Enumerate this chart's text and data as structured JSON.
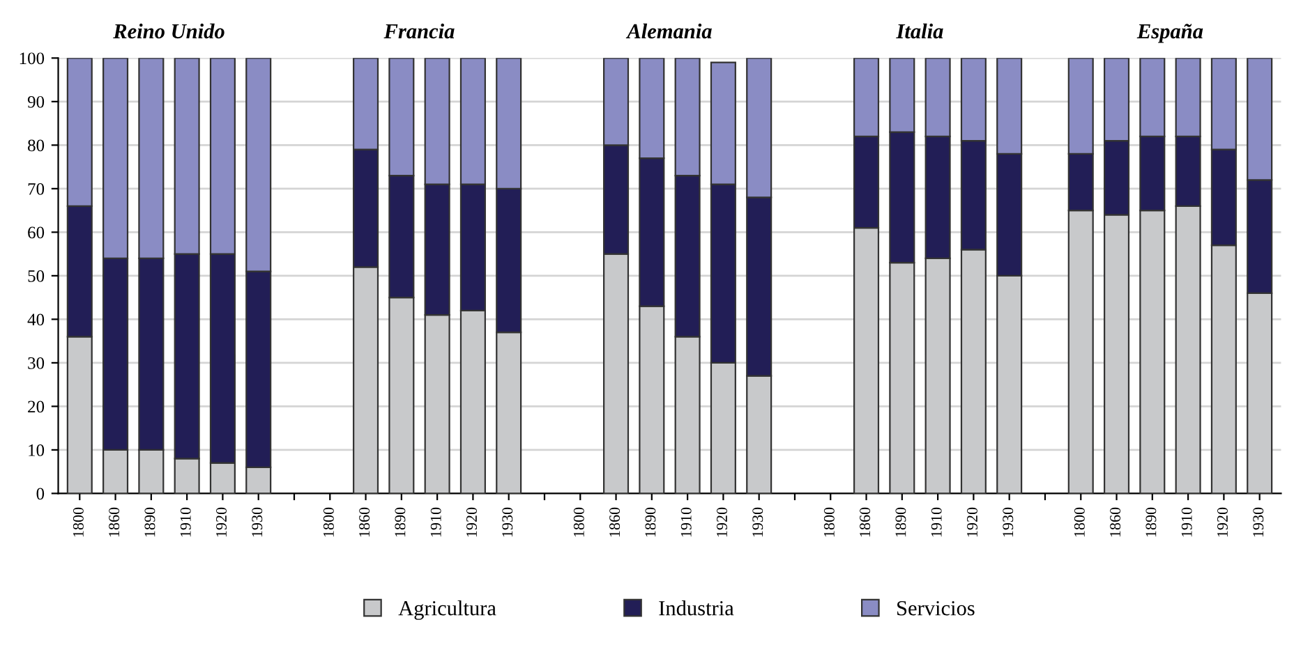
{
  "chart_data": {
    "type": "bar",
    "stacked": true,
    "categories": [
      "1800",
      "1860",
      "1890",
      "1910",
      "1920",
      "1930",
      null,
      "1800",
      "1860",
      "1890",
      "1910",
      "1920",
      "1930",
      null,
      "1800",
      "1860",
      "1890",
      "1910",
      "1920",
      "1930",
      null,
      "1800",
      "1860",
      "1890",
      "1910",
      "1920",
      "1930",
      null,
      "1800",
      "1860",
      "1890",
      "1910",
      "1920",
      "1930"
    ],
    "series": [
      {
        "name": "Agricultura",
        "color": "#c8c9cb",
        "values": [
          36,
          10,
          10,
          8,
          7,
          6,
          null,
          null,
          52,
          45,
          41,
          42,
          37,
          null,
          null,
          55,
          43,
          36,
          30,
          27,
          null,
          null,
          61,
          53,
          54,
          56,
          50,
          null,
          65,
          64,
          65,
          66,
          57,
          46
        ]
      },
      {
        "name": "Industria",
        "color": "#221e56",
        "values": [
          30,
          44,
          44,
          47,
          48,
          45,
          null,
          null,
          27,
          28,
          30,
          29,
          33,
          null,
          null,
          25,
          34,
          37,
          41,
          41,
          null,
          null,
          21,
          30,
          28,
          25,
          28,
          null,
          13,
          17,
          17,
          16,
          22,
          26
        ]
      },
      {
        "name": "Servicios",
        "color": "#8a8cc4",
        "values": [
          34,
          46,
          46,
          45,
          45,
          49,
          null,
          null,
          21,
          27,
          29,
          29,
          30,
          null,
          null,
          20,
          23,
          27,
          28,
          32,
          null,
          null,
          18,
          17,
          18,
          19,
          22,
          null,
          22,
          19,
          18,
          18,
          21,
          28
        ]
      }
    ],
    "annotations": [
      "Reino Unido",
      "Francia",
      "Alemania",
      "Italia",
      "España"
    ],
    "ylim": [
      0,
      100
    ],
    "yticks": [
      0,
      10,
      20,
      30,
      40,
      50,
      60,
      70,
      80,
      90,
      100
    ],
    "grid": "y",
    "legend": "bottom"
  }
}
